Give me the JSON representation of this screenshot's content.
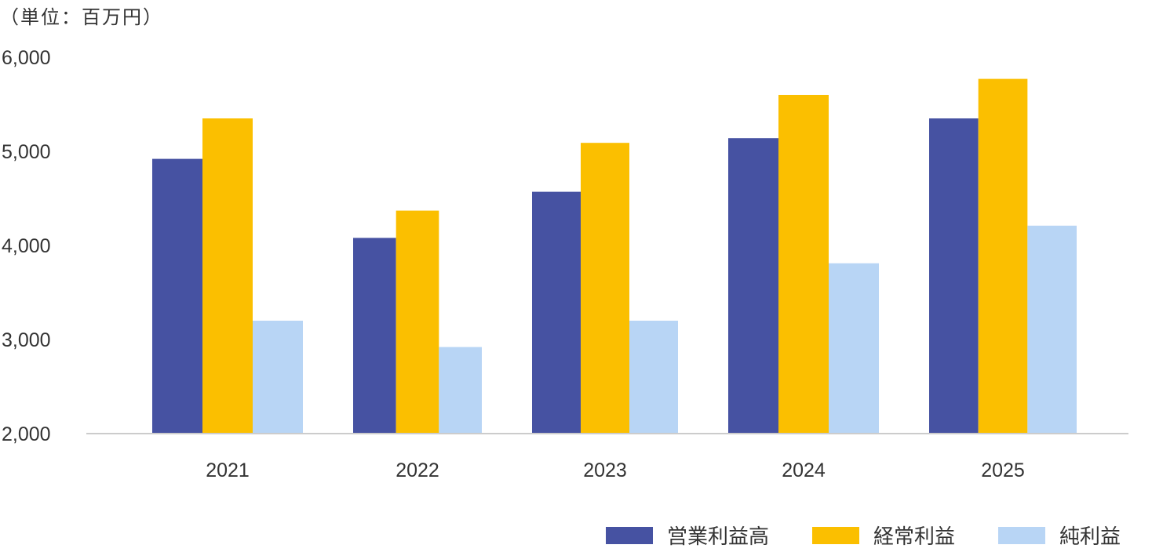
{
  "unit_label": "（単位：百万円）",
  "colors": {
    "series": [
      "#4652a2",
      "#fbbf00",
      "#b8d5f5"
    ],
    "axis_line": "#cccccc",
    "text": "#333333"
  },
  "chart_data": {
    "type": "bar",
    "title": "",
    "xlabel": "",
    "ylabel": "",
    "categories": [
      "2021",
      "2022",
      "2023",
      "2024",
      "2025"
    ],
    "series": [
      {
        "name": "営業利益高",
        "values": [
          4920,
          4080,
          4570,
          5140,
          5350
        ]
      },
      {
        "name": "経常利益",
        "values": [
          5350,
          4370,
          5090,
          5600,
          5770
        ]
      },
      {
        "name": "純利益",
        "values": [
          3200,
          2920,
          3200,
          3810,
          4210
        ]
      }
    ],
    "ylim": [
      2000,
      6000
    ],
    "yticks": [
      "2,000",
      "3,000",
      "4,000",
      "5,000",
      "6,000"
    ],
    "grid": false,
    "legend_position": "bottom-right"
  }
}
